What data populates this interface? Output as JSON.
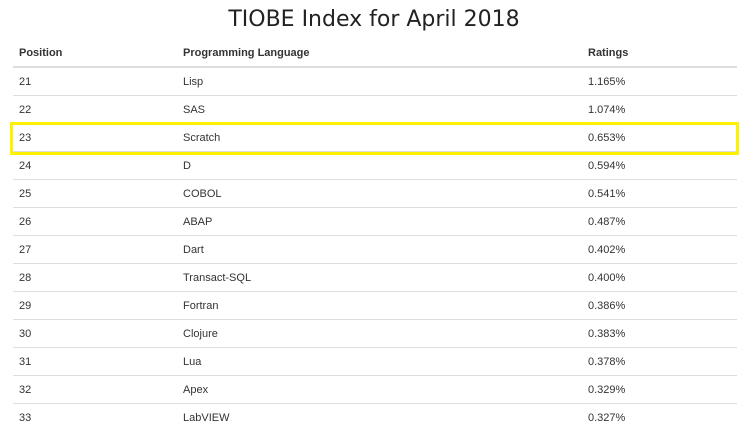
{
  "title": "TIOBE Index for April 2018",
  "table": {
    "headers": [
      "Position",
      "Programming Language",
      "Ratings"
    ],
    "rows": [
      [
        "21",
        "Lisp",
        "1.165%"
      ],
      [
        "22",
        "SAS",
        "1.074%"
      ],
      [
        "23",
        "Scratch",
        "0.653%"
      ],
      [
        "24",
        "D",
        "0.594%"
      ],
      [
        "25",
        "COBOL",
        "0.541%"
      ],
      [
        "26",
        "ABAP",
        "0.487%"
      ],
      [
        "27",
        "Dart",
        "0.402%"
      ],
      [
        "28",
        "Transact-SQL",
        "0.400%"
      ],
      [
        "29",
        "Fortran",
        "0.386%"
      ],
      [
        "30",
        "Clojure",
        "0.383%"
      ],
      [
        "31",
        "Lua",
        "0.378%"
      ],
      [
        "32",
        "Apex",
        "0.329%"
      ],
      [
        "33",
        "LabVIEW",
        "0.327%"
      ]
    ],
    "highlighted_row": 2,
    "highlight_color": "#fff200"
  }
}
